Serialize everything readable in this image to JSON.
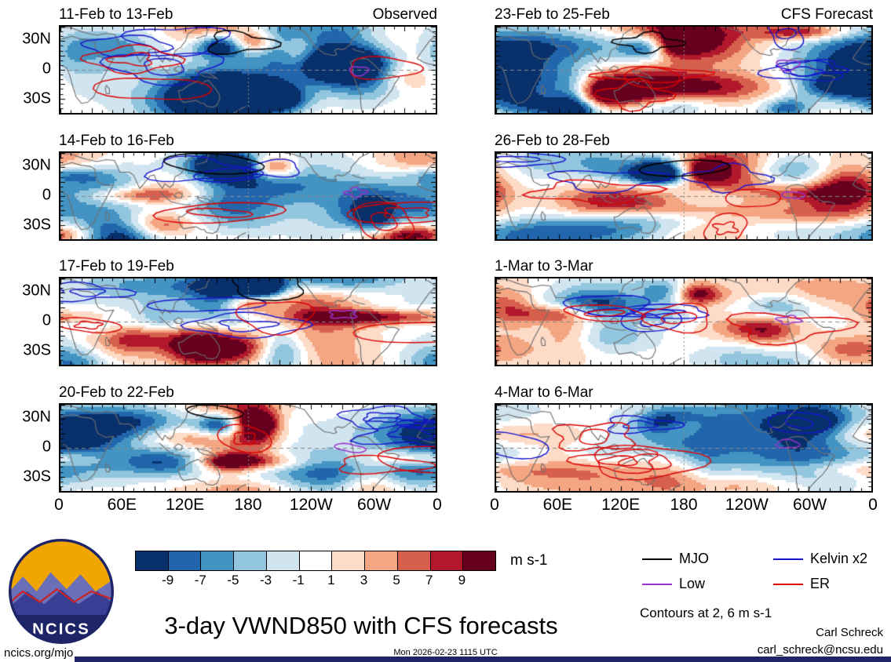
{
  "columns": [
    {
      "header_label": "Observed"
    },
    {
      "header_label": "CFS Forecast"
    }
  ],
  "panels": [
    {
      "title": "11-Feb to 13-Feb",
      "column": "Observed"
    },
    {
      "title": "14-Feb to 16-Feb",
      "column": "Observed"
    },
    {
      "title": "17-Feb to 19-Feb",
      "column": "Observed"
    },
    {
      "title": "20-Feb to 22-Feb",
      "column": "Observed"
    },
    {
      "title": "23-Feb to 25-Feb",
      "column": "CFS Forecast"
    },
    {
      "title": "26-Feb to 28-Feb",
      "column": "CFS Forecast"
    },
    {
      "title": "1-Mar to 3-Mar",
      "column": "CFS Forecast"
    },
    {
      "title": "4-Mar to 6-Mar",
      "column": "CFS Forecast"
    }
  ],
  "axes": {
    "y_ticks": [
      "30N",
      "0",
      "30S"
    ],
    "x_ticks": [
      "0",
      "60E",
      "120E",
      "180",
      "120W",
      "60W",
      "0"
    ]
  },
  "colorbar": {
    "ticks": [
      "-9",
      "-7",
      "-5",
      "-3",
      "-1",
      "1",
      "3",
      "5",
      "7",
      "9"
    ],
    "unit": "m s-1",
    "colors": [
      "#08306b",
      "#2166ac",
      "#4393c3",
      "#92c5de",
      "#d1e5f0",
      "#ffffff",
      "#fddbc7",
      "#f4a582",
      "#d6604d",
      "#b2182b",
      "#67001f"
    ]
  },
  "legend": {
    "items": [
      {
        "label": "MJO",
        "color": "#000000"
      },
      {
        "label": "Low",
        "color": "#9932cc"
      },
      {
        "label": "Kelvin x2",
        "color": "#1414cd"
      },
      {
        "label": "ER",
        "color": "#dd0000"
      }
    ]
  },
  "notes": {
    "contours": "Contours at 2, 6 m s-1"
  },
  "footer": {
    "title": "3-day VWND850 with CFS forecasts",
    "author": "Carl Schreck",
    "email": "carl_schreck@ncsu.edu",
    "site": "ncics.org/mjo",
    "timestamp": "Mon 2026-02-23 1115 UTC",
    "logo_text": "NCICS"
  },
  "chart_data": {
    "type": "heatmap",
    "title": "3-day VWND850 with CFS forecasts",
    "description": "Eight longitude-latitude world map panels of 3-day mean 850 hPa meridional wind (VWND850) anomalies shaded every 2 m s-1, overlaid with wave-filtered contours (MJO black, Low purple, Kelvin x2 blue, ER red) at 2 and 6 m s-1. Left column is observed, right column is CFS forecast.",
    "variable": "VWND850",
    "units": "m s-1",
    "shading_levels": [
      -9,
      -7,
      -5,
      -3,
      -1,
      1,
      3,
      5,
      7,
      9
    ],
    "contour_levels": [
      2,
      6
    ],
    "lon_range": [
      0,
      360
    ],
    "lat_range": [
      -45,
      45
    ],
    "lon_ticks": [
      "0",
      "60E",
      "120E",
      "180",
      "120W",
      "60W",
      "0"
    ],
    "lat_ticks": [
      "30N",
      "0",
      "30S"
    ],
    "panels": [
      {
        "title": "11-Feb to 13-Feb",
        "type": "Observed"
      },
      {
        "title": "14-Feb to 16-Feb",
        "type": "Observed"
      },
      {
        "title": "17-Feb to 19-Feb",
        "type": "Observed"
      },
      {
        "title": "20-Feb to 22-Feb",
        "type": "Observed"
      },
      {
        "title": "23-Feb to 25-Feb",
        "type": "CFS Forecast"
      },
      {
        "title": "26-Feb to 28-Feb",
        "type": "CFS Forecast"
      },
      {
        "title": "1-Mar to 3-Mar",
        "type": "CFS Forecast"
      },
      {
        "title": "4-Mar to 6-Mar",
        "type": "CFS Forecast"
      }
    ],
    "legend": [
      {
        "label": "MJO",
        "color": "#000000"
      },
      {
        "label": "Low",
        "color": "#9932cc"
      },
      {
        "label": "Kelvin x2",
        "color": "#1414cd"
      },
      {
        "label": "ER",
        "color": "#dd0000"
      }
    ]
  }
}
